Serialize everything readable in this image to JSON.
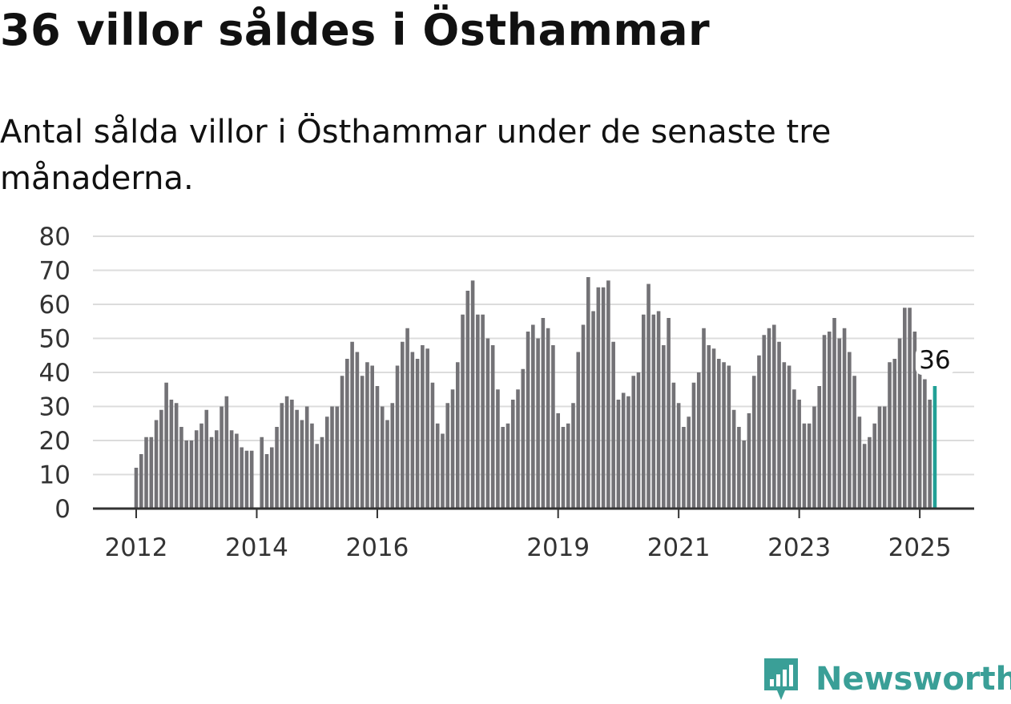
{
  "header": {
    "title": "36 villor såldes i Östhammar",
    "subtitle": "Antal sålda villor i Östhammar under de senaste tre månaderna."
  },
  "brand": {
    "name": "Newsworthy",
    "color": "#3a9f97"
  },
  "colors": {
    "bar": "#737276",
    "highlight": "#21a096",
    "grid": "#dcdcdc",
    "axis": "#333333"
  },
  "chart_data": {
    "type": "bar",
    "start": "2012-01",
    "frequency": "monthly",
    "y_ticks": [
      0,
      10,
      20,
      30,
      40,
      50,
      60,
      70,
      80
    ],
    "ylim": [
      0,
      80
    ],
    "x_tick_labels": [
      "2012",
      "2014",
      "2016",
      "2019",
      "2021",
      "2023",
      "2025"
    ],
    "values": [
      12,
      16,
      21,
      21,
      26,
      29,
      37,
      32,
      31,
      24,
      20,
      20,
      23,
      25,
      29,
      21,
      23,
      30,
      33,
      23,
      22,
      18,
      17,
      17,
      null,
      21,
      16,
      18,
      24,
      31,
      33,
      32,
      29,
      26,
      30,
      25,
      19,
      21,
      27,
      30,
      30,
      39,
      44,
      49,
      46,
      39,
      43,
      42,
      36,
      30,
      26,
      31,
      42,
      49,
      53,
      46,
      44,
      48,
      47,
      37,
      25,
      22,
      31,
      35,
      43,
      57,
      64,
      67,
      57,
      57,
      50,
      48,
      35,
      24,
      25,
      32,
      35,
      41,
      52,
      54,
      50,
      56,
      53,
      48,
      28,
      24,
      25,
      31,
      46,
      54,
      68,
      58,
      65,
      65,
      67,
      49,
      32,
      34,
      33,
      39,
      40,
      57,
      66,
      57,
      58,
      48,
      56,
      37,
      31,
      24,
      27,
      37,
      40,
      53,
      48,
      47,
      44,
      43,
      42,
      29,
      24,
      20,
      28,
      39,
      45,
      51,
      53,
      54,
      49,
      43,
      42,
      35,
      32,
      25,
      25,
      30,
      36,
      51,
      52,
      56,
      50,
      53,
      46,
      39,
      27,
      19,
      21,
      25,
      30,
      30,
      43,
      44,
      50,
      59,
      59,
      52,
      40,
      38,
      32,
      36
    ],
    "highlight_last": true,
    "highlight_label": "36"
  }
}
